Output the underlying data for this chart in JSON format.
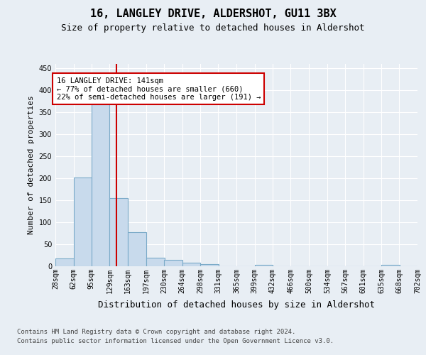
{
  "title": "16, LANGLEY DRIVE, ALDERSHOT, GU11 3BX",
  "subtitle": "Size of property relative to detached houses in Aldershot",
  "xlabel": "Distribution of detached houses by size in Aldershot",
  "ylabel": "Number of detached properties",
  "footer_line1": "Contains HM Land Registry data © Crown copyright and database right 2024.",
  "footer_line2": "Contains public sector information licensed under the Open Government Licence v3.0.",
  "bin_edges": [
    28,
    62,
    95,
    129,
    163,
    197,
    230,
    264,
    298,
    331,
    365,
    399,
    432,
    466,
    500,
    534,
    567,
    601,
    635,
    668,
    702
  ],
  "bar_values": [
    18,
    202,
    368,
    155,
    77,
    20,
    14,
    8,
    5,
    0,
    0,
    4,
    0,
    0,
    0,
    0,
    0,
    0,
    4,
    0
  ],
  "bar_color": "#c8daec",
  "bar_edge_color": "#7aaac8",
  "property_size": 141,
  "vline_color": "#cc0000",
  "annotation_line1": "16 LANGLEY DRIVE: 141sqm",
  "annotation_line2": "← 77% of detached houses are smaller (660)",
  "annotation_line3": "22% of semi-detached houses are larger (191) →",
  "annotation_box_facecolor": "#ffffff",
  "annotation_box_edgecolor": "#cc0000",
  "ylim": [
    0,
    460
  ],
  "yticks": [
    0,
    50,
    100,
    150,
    200,
    250,
    300,
    350,
    400,
    450
  ],
  "bg_color": "#e8eef4",
  "grid_color": "#ffffff",
  "title_fontsize": 11,
  "subtitle_fontsize": 9,
  "tick_label_fontsize": 7,
  "ylabel_fontsize": 8,
  "xlabel_fontsize": 9,
  "annotation_fontsize": 7.5,
  "footer_fontsize": 6.5
}
